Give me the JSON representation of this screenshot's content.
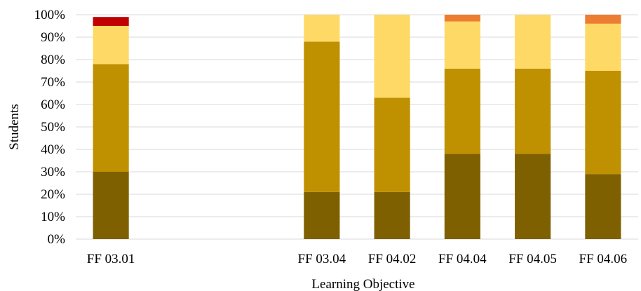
{
  "chart_data": {
    "type": "bar",
    "stacked": true,
    "title": "",
    "xlabel": "Learning Objective",
    "ylabel": "Students",
    "ylim": [
      0,
      1
    ],
    "y_ticks": [
      "0%",
      "10%",
      "20%",
      "30%",
      "40%",
      "50%",
      "60%",
      "70%",
      "80%",
      "90%",
      "100%"
    ],
    "grid": true,
    "legend": "none",
    "categories": [
      "FF 03.01",
      "",
      "",
      "FF 03.04",
      "FF 04.02",
      "FF 04.04",
      "FF 04.05",
      "FF 04.06"
    ],
    "series": [
      {
        "color": "#7f6000",
        "values": [
          0.3,
          null,
          null,
          0.21,
          0.21,
          0.38,
          0.38,
          0.29
        ]
      },
      {
        "color": "#bf9000",
        "values": [
          0.48,
          null,
          null,
          0.67,
          0.42,
          0.38,
          0.38,
          0.46
        ]
      },
      {
        "color": "#ffd966",
        "values": [
          0.17,
          null,
          null,
          0.12,
          0.37,
          0.21,
          0.24,
          0.21
        ]
      },
      {
        "color": "#ed7d31",
        "values": [
          0.0,
          null,
          null,
          0.0,
          0.0,
          0.03,
          0.0,
          0.04
        ]
      },
      {
        "color": "#c00000",
        "values": [
          0.04,
          null,
          null,
          0.0,
          0.0,
          0.0,
          0.0,
          0.0
        ]
      }
    ]
  }
}
